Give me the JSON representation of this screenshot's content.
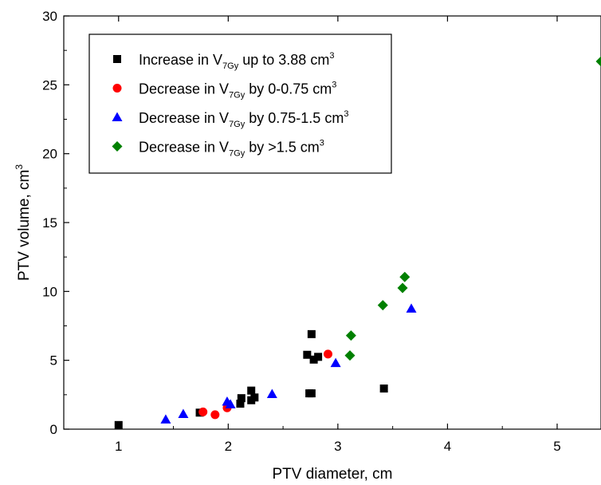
{
  "chart_data": {
    "type": "scatter",
    "xlabel": "PTV diameter, cm",
    "ylabel": "PTV volume, cm",
    "ylabel_sup": "3",
    "xlim": [
      0.5,
      5.4
    ],
    "ylim": [
      0,
      30
    ],
    "x_ticks": [
      1,
      2,
      3,
      4,
      5
    ],
    "y_ticks": [
      0,
      5,
      10,
      15,
      20,
      25,
      30
    ],
    "legend_position": "top-left",
    "series": [
      {
        "name": "Increase in V7Gy up to 3.88 cm3",
        "label": {
          "pre": "Increase in V",
          "sub": "7Gy",
          "post": " up to 3.88 cm",
          "sup": "3"
        },
        "marker": "square",
        "color": "#000000",
        "points": [
          [
            1.0,
            0.3
          ],
          [
            1.74,
            1.2
          ],
          [
            2.11,
            1.85
          ],
          [
            2.12,
            2.25
          ],
          [
            2.21,
            2.1
          ],
          [
            2.21,
            2.8
          ],
          [
            2.24,
            2.3
          ],
          [
            2.72,
            5.4
          ],
          [
            2.74,
            2.6
          ],
          [
            2.76,
            2.6
          ],
          [
            2.76,
            6.9
          ],
          [
            2.78,
            5.05
          ],
          [
            2.82,
            5.25
          ],
          [
            3.42,
            2.95
          ]
        ]
      },
      {
        "name": "Decrease in V7Gy by 0-0.75 cm3",
        "label": {
          "pre": "Decrease in V",
          "sub": "7Gy",
          "post": " by 0-0.75 cm",
          "sup": "3"
        },
        "marker": "circle",
        "color": "#ff0000",
        "points": [
          [
            1.77,
            1.25
          ],
          [
            1.88,
            1.05
          ],
          [
            1.99,
            1.55
          ],
          [
            2.91,
            5.45
          ]
        ]
      },
      {
        "name": "Decrease in V7Gy by 0.75-1.5 cm3",
        "label": {
          "pre": "Decrease in V",
          "sub": "7Gy",
          "post": " by 0.75-1.5 cm",
          "sup": "3"
        },
        "marker": "triangle",
        "color": "#0000ff",
        "points": [
          [
            1.43,
            0.7
          ],
          [
            1.59,
            1.1
          ],
          [
            1.99,
            2.0
          ],
          [
            2.02,
            1.8
          ],
          [
            2.4,
            2.55
          ],
          [
            2.98,
            4.8
          ],
          [
            3.67,
            8.75
          ]
        ]
      },
      {
        "name": "Decrease in V7Gy by >1.5 cm3",
        "label": {
          "pre": "Decrease in V",
          "sub": "7Gy",
          "post": " by >1.5 cm",
          "sup": "3"
        },
        "marker": "diamond",
        "color": "#008000",
        "points": [
          [
            3.11,
            5.35
          ],
          [
            3.12,
            6.8
          ],
          [
            3.41,
            9.0
          ],
          [
            3.59,
            10.25
          ],
          [
            3.61,
            11.05
          ],
          [
            5.4,
            26.7
          ]
        ]
      }
    ]
  }
}
